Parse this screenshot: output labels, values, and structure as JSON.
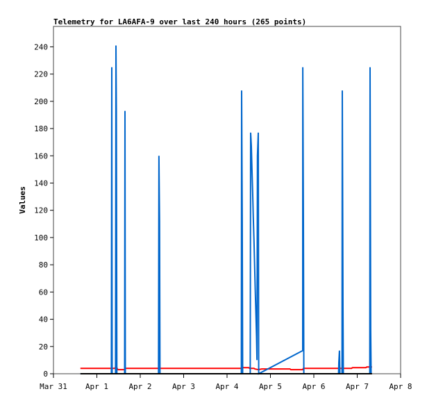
{
  "chart_data": {
    "type": "line",
    "title": "Telemetry for LA6AFA-9 over last 240 hours (265 points)",
    "xlabel": "",
    "ylabel": "Values",
    "xlim_days_from_mar31": [
      0,
      8
    ],
    "ylim": [
      0,
      255
    ],
    "x_ticks": [
      {
        "day": 0,
        "label": "Mar 31"
      },
      {
        "day": 1,
        "label": "Apr 1"
      },
      {
        "day": 2,
        "label": "Apr 2"
      },
      {
        "day": 3,
        "label": "Apr 3"
      },
      {
        "day": 4,
        "label": "Apr 4"
      },
      {
        "day": 5,
        "label": "Apr 5"
      },
      {
        "day": 6,
        "label": "Apr 6"
      },
      {
        "day": 7,
        "label": "Apr 7"
      },
      {
        "day": 8,
        "label": "Apr 8"
      }
    ],
    "y_ticks": [
      0,
      20,
      40,
      60,
      80,
      100,
      120,
      140,
      160,
      180,
      200,
      220,
      240
    ],
    "grid": false,
    "series": [
      {
        "name": "black",
        "color": "#000000",
        "points": [
          [
            0.62,
            0
          ],
          [
            7.34,
            0
          ]
        ]
      },
      {
        "name": "red",
        "color": "#ff0000",
        "points": [
          [
            0.62,
            4
          ],
          [
            1.42,
            4
          ],
          [
            1.43,
            5
          ],
          [
            1.46,
            4.5
          ],
          [
            1.48,
            3
          ],
          [
            1.64,
            3
          ],
          [
            1.66,
            4
          ],
          [
            4.33,
            4
          ],
          [
            4.35,
            5
          ],
          [
            4.38,
            4.5
          ],
          [
            4.5,
            4.5
          ],
          [
            4.52,
            4
          ],
          [
            4.62,
            4
          ],
          [
            4.64,
            3.5
          ],
          [
            4.72,
            3
          ],
          [
            4.8,
            3.5
          ],
          [
            5.45,
            3.5
          ],
          [
            5.47,
            3
          ],
          [
            5.74,
            3
          ],
          [
            5.76,
            4
          ],
          [
            6.87,
            4
          ],
          [
            6.89,
            4.5
          ],
          [
            7.2,
            4.5
          ],
          [
            7.22,
            5
          ],
          [
            7.34,
            5
          ]
        ]
      },
      {
        "name": "blue",
        "color": "#0066cc",
        "points": [
          [
            0.62,
            0
          ],
          [
            1.335,
            0
          ],
          [
            1.344,
            225
          ],
          [
            1.352,
            0
          ],
          [
            1.43,
            0
          ],
          [
            1.44,
            241
          ],
          [
            1.45,
            193
          ],
          [
            1.46,
            0
          ],
          [
            1.64,
            0
          ],
          [
            1.648,
            193
          ],
          [
            1.656,
            0
          ],
          [
            2.42,
            0
          ],
          [
            2.43,
            160
          ],
          [
            2.445,
            112
          ],
          [
            2.455,
            0
          ],
          [
            4.33,
            0
          ],
          [
            4.336,
            208
          ],
          [
            4.35,
            112
          ],
          [
            4.36,
            0
          ],
          [
            4.535,
            0
          ],
          [
            4.544,
            177
          ],
          [
            4.56,
            167
          ],
          [
            4.575,
            150
          ],
          [
            4.59,
            133
          ],
          [
            4.605,
            115
          ],
          [
            4.62,
            98
          ],
          [
            4.635,
            80
          ],
          [
            4.65,
            62
          ],
          [
            4.665,
            44
          ],
          [
            4.68,
            27
          ],
          [
            4.69,
            10
          ],
          [
            4.7,
            160
          ],
          [
            4.72,
            177
          ],
          [
            4.73,
            0
          ],
          [
            5.744,
            17
          ],
          [
            5.746,
            225
          ],
          [
            5.76,
            112
          ],
          [
            5.77,
            0
          ],
          [
            6.57,
            0
          ],
          [
            6.576,
            8
          ],
          [
            6.59,
            17
          ],
          [
            6.6,
            0
          ],
          [
            6.65,
            0
          ],
          [
            6.656,
            208
          ],
          [
            6.672,
            48
          ],
          [
            6.68,
            0
          ],
          [
            7.29,
            0
          ],
          [
            7.296,
            225
          ],
          [
            7.31,
            32
          ],
          [
            7.32,
            0
          ]
        ]
      }
    ]
  }
}
